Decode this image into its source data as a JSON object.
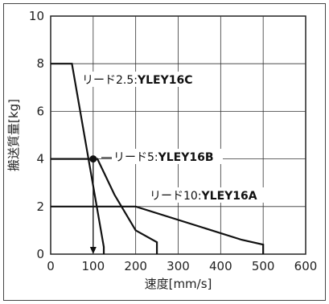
{
  "chart_data": {
    "type": "line",
    "xlabel": "速度[mm/s]",
    "ylabel": "搬送質量[kg]",
    "xlim": [
      0,
      600
    ],
    "ylim": [
      0,
      10
    ],
    "x_ticks": [
      0,
      100,
      200,
      300,
      400,
      500,
      600
    ],
    "y_ticks": [
      0,
      2,
      4,
      6,
      8,
      10
    ],
    "grid": true,
    "series": [
      {
        "name": "リード2.5:YLEY16C",
        "label_prefix": "リード2.5:",
        "label_model": "YLEY16C",
        "points": [
          [
            0,
            8
          ],
          [
            50,
            8
          ],
          [
            125,
            0.3
          ],
          [
            125,
            0
          ]
        ]
      },
      {
        "name": "リード5:YLEY16B",
        "label_prefix": "リード5:",
        "label_model": "YLEY16B",
        "points": [
          [
            0,
            4
          ],
          [
            110,
            4
          ],
          [
            150,
            2.5
          ],
          [
            200,
            1
          ],
          [
            250,
            0.5
          ],
          [
            250,
            0
          ]
        ]
      },
      {
        "name": "リード10:YLEY16A",
        "label_prefix": "リード10:",
        "label_model": "YLEY16A",
        "points": [
          [
            0,
            2
          ],
          [
            200,
            2
          ],
          [
            450,
            0.6
          ],
          [
            500,
            0.4
          ],
          [
            500,
            0
          ]
        ]
      }
    ],
    "example_point": [
      100,
      4
    ],
    "example_arrow_from": [
      100,
      4
    ],
    "example_arrow_to": [
      100,
      0
    ]
  }
}
